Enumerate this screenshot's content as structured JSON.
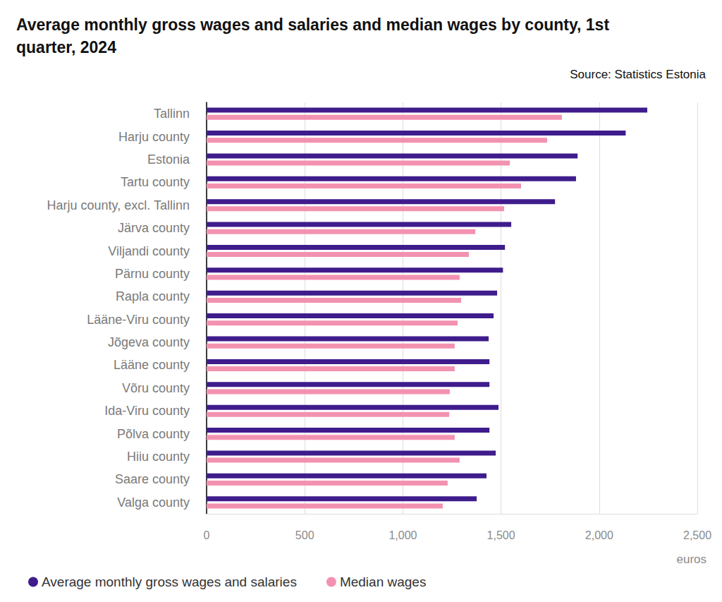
{
  "chart_data": {
    "type": "bar",
    "orientation": "horizontal",
    "title": "Average monthly gross wages and salaries and median wages by county, 1st quarter, 2024",
    "subtitle": "Source: Statistics Estonia",
    "xlabel": "euros",
    "categories": [
      "Tallinn",
      "Harju county",
      "Estonia",
      "Tartu county",
      "Harju county, excl. Tallinn",
      "Järva county",
      "Viljandi county",
      "Pärnu county",
      "Rapla county",
      "Lääne-Viru county",
      "Jõgeva county",
      "Lääne county",
      "Võru county",
      "Ida-Viru county",
      "Põlva county",
      "Hiiu county",
      "Saare county",
      "Valga county"
    ],
    "series": [
      {
        "name": "Average monthly gross wages and salaries",
        "color": "#3f1c8c",
        "values": [
          2245,
          2135,
          1890,
          1882,
          1775,
          1552,
          1520,
          1510,
          1480,
          1462,
          1437,
          1441,
          1441,
          1487,
          1441,
          1473,
          1426,
          1376
        ]
      },
      {
        "name": "Median wages",
        "color": "#f392b0",
        "values": [
          1810,
          1735,
          1545,
          1602,
          1516,
          1369,
          1336,
          1289,
          1297,
          1279,
          1264,
          1264,
          1239,
          1236,
          1264,
          1289,
          1228,
          1203
        ]
      }
    ],
    "xlim": [
      0,
      2500
    ],
    "xticks": [
      0,
      500,
      {
        "value": 1000,
        "label": "1,000"
      },
      {
        "value": 1500,
        "label": "1,500"
      },
      {
        "value": 2000,
        "label": "2,000"
      },
      {
        "value": 2500,
        "label": "2,500"
      }
    ],
    "grid": true,
    "legend": "bottom-left"
  }
}
